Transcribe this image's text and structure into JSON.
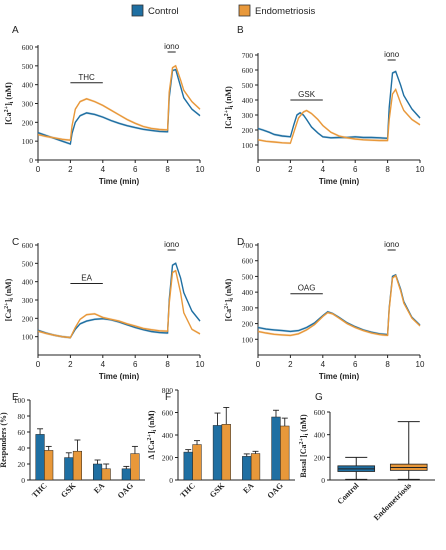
{
  "legend": {
    "control_label": "Control",
    "endo_label": "Endometriosis",
    "control_color": "#1f6fa2",
    "endo_color": "#e8983a"
  },
  "chart_data": [
    {
      "panel": "A",
      "type": "line",
      "xlabel": "Time (min)",
      "ylabel": "[Ca2+]i (nM)",
      "xlim": [
        0,
        10
      ],
      "ylim": [
        0,
        600
      ],
      "xticks": [
        0,
        2,
        4,
        6,
        8,
        10
      ],
      "yticks": [
        0,
        100,
        200,
        300,
        400,
        500,
        600
      ],
      "stim_label": "THC",
      "stim_range": [
        2,
        4
      ],
      "iono_label": "iono",
      "iono_range": [
        8,
        8.5
      ],
      "series": [
        {
          "name": "Control",
          "x": [
            0,
            0.5,
            1,
            1.5,
            2,
            2.1,
            2.3,
            2.6,
            3,
            3.5,
            4,
            4.5,
            5,
            5.5,
            6,
            6.5,
            7,
            7.5,
            8,
            8.1,
            8.3,
            8.5,
            8.8,
            9,
            9.5,
            10
          ],
          "y": [
            145,
            130,
            115,
            100,
            85,
            140,
            200,
            235,
            250,
            242,
            228,
            210,
            195,
            182,
            172,
            163,
            157,
            152,
            150,
            330,
            475,
            480,
            390,
            330,
            270,
            235
          ]
        },
        {
          "name": "Endometriosis",
          "x": [
            0,
            0.5,
            1,
            1.5,
            2,
            2.1,
            2.3,
            2.6,
            3,
            3.5,
            4,
            4.5,
            5,
            5.5,
            6,
            6.5,
            7,
            7.5,
            8,
            8.1,
            8.3,
            8.5,
            8.8,
            9,
            9.5,
            10
          ],
          "y": [
            135,
            125,
            118,
            110,
            105,
            180,
            270,
            310,
            325,
            310,
            290,
            265,
            240,
            215,
            195,
            178,
            168,
            162,
            160,
            360,
            490,
            500,
            425,
            370,
            310,
            270
          ]
        }
      ]
    },
    {
      "panel": "B",
      "type": "line",
      "xlabel": "Time (min)",
      "ylabel": "[Ca2+]i (nM)",
      "xlim": [
        0,
        10
      ],
      "ylim": [
        0,
        700
      ],
      "xticks": [
        0,
        2,
        4,
        6,
        8,
        10
      ],
      "yticks": [
        100,
        200,
        300,
        400,
        500,
        600,
        700
      ],
      "stim_label": "GSK",
      "stim_range": [
        2,
        4
      ],
      "iono_label": "iono",
      "iono_range": [
        8,
        8.5
      ],
      "series": [
        {
          "name": "Control",
          "x": [
            0,
            0.3,
            0.7,
            1,
            1.5,
            2,
            2.2,
            2.4,
            2.6,
            2.8,
            3,
            3.3,
            3.7,
            4,
            4.5,
            5,
            5.5,
            6,
            6.5,
            7,
            7.5,
            8,
            8.1,
            8.3,
            8.5,
            8.8,
            9,
            9.5,
            10
          ],
          "y": [
            210,
            200,
            185,
            170,
            160,
            155,
            230,
            300,
            315,
            300,
            270,
            220,
            180,
            155,
            148,
            150,
            150,
            155,
            150,
            150,
            148,
            145,
            350,
            580,
            590,
            500,
            430,
            340,
            280
          ]
        },
        {
          "name": "Endometriosis",
          "x": [
            0,
            0.5,
            1,
            1.5,
            2,
            2.2,
            2.5,
            2.8,
            3,
            3.3,
            3.7,
            4,
            4.5,
            5,
            5.5,
            6,
            6.5,
            7,
            7.5,
            8,
            8.1,
            8.3,
            8.5,
            8.8,
            9,
            9.5,
            10
          ],
          "y": [
            135,
            125,
            120,
            115,
            112,
            180,
            280,
            320,
            330,
            310,
            270,
            230,
            185,
            160,
            148,
            140,
            135,
            132,
            130,
            130,
            270,
            440,
            470,
            380,
            330,
            270,
            235
          ]
        }
      ]
    },
    {
      "panel": "C",
      "type": "line",
      "xlabel": "Time (min)",
      "ylabel": "[Ca2+]i (nM)",
      "xlim": [
        0,
        10
      ],
      "ylim": [
        0,
        600
      ],
      "xticks": [
        0,
        2,
        4,
        6,
        8,
        10
      ],
      "yticks": [
        100,
        200,
        300,
        400,
        500,
        600
      ],
      "stim_label": "EA",
      "stim_range": [
        2,
        4
      ],
      "iono_label": "iono",
      "iono_range": [
        8,
        8.5
      ],
      "series": [
        {
          "name": "Control",
          "x": [
            0,
            0.5,
            1,
            1.5,
            2,
            2.3,
            2.6,
            3,
            3.5,
            4,
            4.5,
            5,
            5.5,
            6,
            6.5,
            7,
            7.5,
            8,
            8.1,
            8.3,
            8.5,
            8.8,
            9,
            9.5,
            10
          ],
          "y": [
            135,
            120,
            108,
            100,
            95,
            140,
            170,
            185,
            195,
            198,
            192,
            180,
            165,
            150,
            138,
            128,
            122,
            120,
            300,
            490,
            500,
            420,
            340,
            240,
            185
          ]
        },
        {
          "name": "Endometriosis",
          "x": [
            0,
            0.5,
            1,
            1.5,
            2,
            2.3,
            2.6,
            3,
            3.5,
            4,
            4.5,
            5,
            5.5,
            6,
            6.5,
            7,
            7.5,
            8,
            8.1,
            8.3,
            8.5,
            8.8,
            9,
            9.5,
            10
          ],
          "y": [
            130,
            118,
            108,
            100,
            95,
            150,
            195,
            220,
            225,
            205,
            195,
            185,
            170,
            158,
            145,
            138,
            132,
            130,
            280,
            450,
            460,
            340,
            230,
            140,
            115
          ]
        }
      ]
    },
    {
      "panel": "D",
      "type": "line",
      "xlabel": "Time (min)",
      "ylabel": "[Ca2+]i (nM)",
      "xlim": [
        0,
        10
      ],
      "ylim": [
        0,
        700
      ],
      "xticks": [
        0,
        2,
        4,
        6,
        8,
        10
      ],
      "yticks": [
        100,
        200,
        300,
        400,
        500,
        600,
        700
      ],
      "stim_label": "OAG",
      "stim_range": [
        2,
        4
      ],
      "iono_label": "iono",
      "iono_range": [
        8,
        8.5
      ],
      "series": [
        {
          "name": "Control",
          "x": [
            0,
            0.5,
            1,
            1.5,
            2,
            2.5,
            3,
            3.5,
            4,
            4.3,
            4.6,
            5,
            5.5,
            6,
            6.5,
            7,
            7.5,
            8,
            8.1,
            8.3,
            8.5,
            8.8,
            9,
            9.5,
            10
          ],
          "y": [
            175,
            165,
            160,
            155,
            150,
            155,
            175,
            205,
            250,
            275,
            265,
            240,
            205,
            180,
            160,
            145,
            135,
            130,
            300,
            500,
            510,
            420,
            340,
            240,
            190
          ]
        },
        {
          "name": "Endometriosis",
          "x": [
            0,
            0.5,
            1,
            1.5,
            2,
            2.5,
            3,
            3.5,
            4,
            4.3,
            4.6,
            5,
            5.5,
            6,
            6.5,
            7,
            7.5,
            8,
            8.1,
            8.3,
            8.5,
            8.8,
            9,
            9.5,
            10
          ],
          "y": [
            150,
            140,
            132,
            128,
            125,
            135,
            160,
            195,
            245,
            270,
            262,
            235,
            200,
            175,
            155,
            140,
            130,
            125,
            290,
            490,
            505,
            410,
            330,
            235,
            185
          ]
        }
      ]
    },
    {
      "panel": "E",
      "type": "bar",
      "ylabel": "Responders (%)",
      "ylim": [
        0,
        100
      ],
      "yticks": [
        0,
        20,
        40,
        60,
        80,
        100
      ],
      "categories": [
        "THC",
        "GSK",
        "EA",
        "OAG"
      ],
      "series": [
        {
          "name": "Control",
          "values": [
            57,
            28,
            20,
            14
          ],
          "errors": [
            7,
            6,
            5,
            3
          ]
        },
        {
          "name": "Endometriosis",
          "values": [
            37,
            36,
            14,
            33
          ],
          "errors": [
            5,
            14,
            6,
            9
          ]
        }
      ]
    },
    {
      "panel": "F",
      "type": "bar",
      "ylabel": "Δ [Ca2+]i (nM)",
      "ylim": [
        0,
        800
      ],
      "yticks": [
        0,
        200,
        400,
        600,
        800
      ],
      "categories": [
        "THC",
        "GSK",
        "EA",
        "OAG"
      ],
      "series": [
        {
          "name": "Control",
          "values": [
            248,
            485,
            210,
            560
          ],
          "errors": [
            22,
            110,
            22,
            60
          ]
        },
        {
          "name": "Endometriosis",
          "values": [
            315,
            495,
            235,
            480
          ],
          "errors": [
            35,
            150,
            20,
            70
          ]
        }
      ]
    },
    {
      "panel": "G",
      "type": "box",
      "ylabel": "Basal [Ca2+]i (nM)",
      "ylim": [
        0,
        600
      ],
      "yticks": [
        0,
        200,
        400,
        600
      ],
      "categories": [
        "Control",
        "Endometriosis"
      ],
      "boxes": [
        {
          "name": "Control",
          "min": 5,
          "q1": 75,
          "median": 98,
          "q3": 125,
          "max": 200
        },
        {
          "name": "Endometriosis",
          "min": 5,
          "q1": 85,
          "median": 110,
          "q3": 140,
          "max": 515
        }
      ]
    }
  ]
}
